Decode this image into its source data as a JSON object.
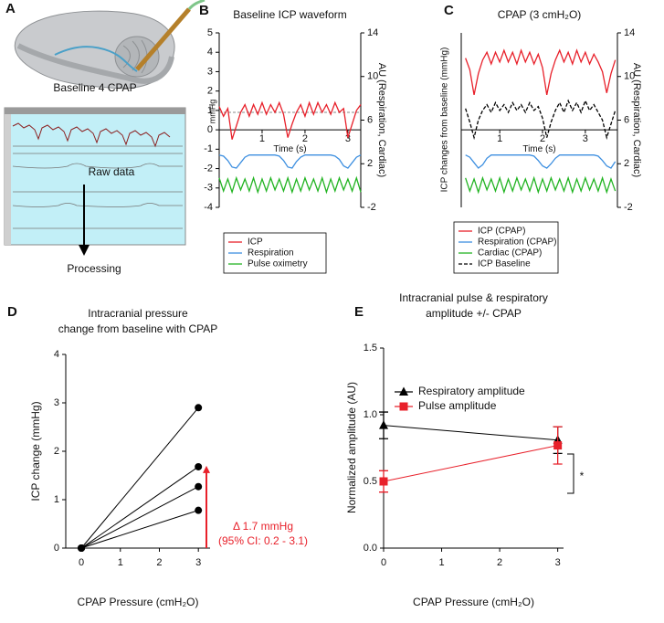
{
  "panel_labels": [
    "A",
    "B",
    "C",
    "D",
    "E"
  ],
  "panel_a": {
    "title": "Baseline  4 CPAP",
    "screen_label": "Raw data",
    "step_label": "Processing"
  },
  "chart_data": [
    {
      "type": "line",
      "title": "Baseline ICP waveform",
      "y_label": "mmHg",
      "y2_label": "AU (Respiration, Cardiac)",
      "x_label": "Time (s)",
      "x": [
        0,
        0.1,
        0.2,
        0.3,
        0.4,
        0.5,
        0.6,
        0.7,
        0.8,
        0.9,
        1.0,
        1.1,
        1.2,
        1.3,
        1.4,
        1.5,
        1.6,
        1.7,
        1.8,
        1.9,
        2.0,
        2.1,
        2.2,
        2.3,
        2.4,
        2.5,
        2.6,
        2.7,
        2.8,
        2.9,
        3.0,
        3.1,
        3.2,
        3.3
      ],
      "xlim": [
        0,
        3.3
      ],
      "xticks": [
        1,
        2,
        3
      ],
      "x_axis_position": 0,
      "ylim": [
        -4,
        5
      ],
      "yticks": [
        5,
        4,
        3,
        2,
        1,
        0,
        -1,
        -2,
        -3,
        -4
      ],
      "y2lim": [
        -2,
        14
      ],
      "y2ticks": [
        14,
        10,
        6,
        2,
        -2
      ],
      "reference_line": 0.9,
      "legend": "below",
      "series": [
        {
          "name": "ICP",
          "color": "#e8202a",
          "values": [
            1.2,
            0.7,
            1.1,
            -0.5,
            0.2,
            0.9,
            1.3,
            0.7,
            1.3,
            0.8,
            1.4,
            0.8,
            1.3,
            0.9,
            1.4,
            0.8,
            -0.4,
            0.3,
            0.9,
            1.3,
            0.7,
            1.4,
            0.8,
            1.4,
            0.9,
            1.3,
            0.8,
            1.4,
            0.9,
            1.1,
            -0.4,
            0.3,
            1.0,
            1.3
          ]
        },
        {
          "name": "Respiration",
          "color": "#3d8fe0",
          "axis": "y2",
          "values": [
            2.8,
            2.7,
            2.3,
            1.7,
            1.6,
            2.1,
            2.6,
            2.8,
            2.8,
            2.8,
            2.8,
            2.8,
            2.8,
            2.8,
            2.7,
            2.3,
            1.7,
            1.6,
            2.2,
            2.6,
            2.8,
            2.8,
            2.8,
            2.8,
            2.8,
            2.8,
            2.8,
            2.7,
            2.4,
            1.8,
            1.6,
            2.1,
            2.6,
            2.8
          ]
        },
        {
          "name": "Pulse oximetry",
          "color": "#22b422",
          "axis": "y2",
          "values": [
            0.7,
            -0.5,
            0.6,
            -0.6,
            0.7,
            -0.4,
            0.6,
            -0.5,
            0.7,
            -0.6,
            0.6,
            -0.5,
            0.7,
            -0.4,
            0.6,
            -0.5,
            0.7,
            -0.6,
            0.6,
            -0.5,
            0.7,
            -0.4,
            0.6,
            -0.5,
            0.7,
            -0.6,
            0.6,
            -0.5,
            0.7,
            -0.4,
            0.6,
            -0.5,
            0.7,
            -0.6
          ]
        }
      ]
    },
    {
      "type": "line",
      "title": "CPAP (3 cmH₂O)",
      "y_label": "ICP changes from baseline (mmHg)",
      "y2_label": "AU (Respiration, Cardiac)",
      "x_label": "Time (s)",
      "x": [
        0.2,
        0.3,
        0.4,
        0.5,
        0.6,
        0.7,
        0.8,
        0.9,
        1.0,
        1.1,
        1.2,
        1.3,
        1.4,
        1.5,
        1.6,
        1.7,
        1.8,
        1.9,
        2.0,
        2.1,
        2.2,
        2.3,
        2.4,
        2.5,
        2.6,
        2.7,
        2.8,
        2.9,
        3.0,
        3.1,
        3.2,
        3.3,
        3.4,
        3.5,
        3.6,
        3.7
      ],
      "xlim": [
        0.1,
        3.75
      ],
      "xticks": [
        1,
        2,
        3
      ],
      "x_axis_position": 0,
      "ylim": [
        -4,
        5
      ],
      "y2lim": [
        -2,
        14
      ],
      "y2ticks": [
        14,
        10,
        6,
        2,
        -2
      ],
      "legend": "below",
      "series": [
        {
          "name": "ICP (CPAP)",
          "color": "#e8202a",
          "values": [
            3.7,
            3.1,
            1.8,
            2.9,
            3.6,
            4.0,
            3.4,
            4.0,
            3.5,
            4.1,
            3.5,
            4.0,
            3.4,
            4.1,
            3.5,
            4.0,
            3.4,
            3.9,
            3.2,
            1.8,
            2.9,
            3.6,
            4.1,
            3.5,
            4.0,
            3.4,
            4.1,
            3.5,
            4.0,
            3.4,
            3.9,
            3.5,
            3.0,
            1.9,
            2.9,
            3.6
          ]
        },
        {
          "name": "Respiration (CPAP)",
          "color": "#3d8fe0",
          "axis": "y2",
          "values": [
            2.8,
            2.6,
            2.1,
            1.6,
            1.9,
            2.5,
            2.8,
            2.8,
            2.8,
            2.8,
            2.8,
            2.8,
            2.8,
            2.8,
            2.8,
            2.8,
            2.7,
            2.3,
            1.8,
            1.6,
            2.0,
            2.5,
            2.8,
            2.8,
            2.8,
            2.8,
            2.8,
            2.8,
            2.8,
            2.8,
            2.8,
            2.7,
            2.3,
            1.8,
            1.6,
            2.2
          ]
        },
        {
          "name": "Cardiac (CPAP)",
          "color": "#22b422",
          "axis": "y2",
          "values": [
            0.7,
            -0.5,
            0.6,
            -0.6,
            0.7,
            -0.4,
            0.6,
            -0.5,
            0.7,
            -0.6,
            0.6,
            -0.5,
            0.7,
            -0.4,
            0.6,
            -0.5,
            0.7,
            -0.6,
            0.6,
            -0.5,
            0.7,
            -0.4,
            0.6,
            -0.5,
            0.7,
            -0.6,
            0.6,
            -0.5,
            0.7,
            -0.4,
            0.6,
            -0.5,
            0.7,
            -0.6,
            0.6,
            -0.5
          ]
        },
        {
          "name": "ICP Baseline",
          "color": "#000000",
          "dash": true,
          "values": [
            1.1,
            0.4,
            -0.4,
            0.5,
            1.0,
            1.3,
            0.9,
            1.4,
            1.0,
            1.3,
            0.9,
            1.4,
            1.0,
            1.3,
            0.9,
            1.4,
            1.0,
            1.2,
            0.6,
            -0.4,
            0.4,
            1.0,
            1.4,
            0.9,
            1.5,
            1.0,
            1.4,
            0.9,
            1.5,
            1.0,
            1.3,
            0.9,
            0.5,
            -0.4,
            0.3,
            1.0
          ]
        }
      ]
    },
    {
      "type": "line",
      "title": [
        "Intracranial pressure",
        "change from baseline with CPAP"
      ],
      "y_label": "ICP change (mmHg)",
      "x_label": "CPAP Pressure (cmH₂O)",
      "x": [
        0,
        3
      ],
      "xlim": [
        -0.4,
        3.3
      ],
      "xticks": [
        0,
        1,
        2,
        3
      ],
      "ylim": [
        0,
        4
      ],
      "yticks": [
        0,
        1,
        2,
        3,
        4
      ],
      "series": [
        {
          "color": "#000000",
          "marker": "circle",
          "values": [
            0,
            2.9
          ]
        },
        {
          "color": "#000000",
          "marker": "circle",
          "values": [
            0,
            1.68
          ]
        },
        {
          "color": "#000000",
          "marker": "circle",
          "values": [
            0,
            1.27
          ]
        },
        {
          "color": "#000000",
          "marker": "circle",
          "values": [
            0,
            0.78
          ]
        }
      ],
      "annotation": {
        "lines": [
          "Δ 1.7 mmHg",
          "(95% CI: 0.2 - 3.1)"
        ],
        "value": 1.7,
        "color": "#e8202a"
      }
    },
    {
      "type": "line",
      "title": [
        "Intracranial pulse & respiratory",
        "amplitude +/- CPAP"
      ],
      "y_label": "Normalized amplitude (AU)",
      "x_label": "CPAP Pressure (cmH₂O)",
      "x": [
        0,
        3
      ],
      "xlim": [
        0,
        3.1
      ],
      "xticks": [
        0,
        1,
        2,
        3
      ],
      "ylim": [
        0,
        1.5
      ],
      "yticks": [
        {
          "value": 0,
          "label": "0.0"
        },
        {
          "value": 0.5,
          "label": "0.5"
        },
        {
          "value": 1,
          "label": "1.0"
        },
        {
          "value": 1.5,
          "label": "1.5"
        }
      ],
      "legend": "upper right",
      "significance": "*",
      "series": [
        {
          "name": "Respiratory amplitude",
          "color": "#000000",
          "marker": "triangle",
          "values": [
            0.92,
            0.81
          ],
          "errors": [
            0.1,
            0.1
          ]
        },
        {
          "name": "Pulse amplitude",
          "color": "#e8202a",
          "marker": "square",
          "values": [
            0.5,
            0.77
          ],
          "errors": [
            0.08,
            0.14
          ]
        }
      ]
    }
  ]
}
